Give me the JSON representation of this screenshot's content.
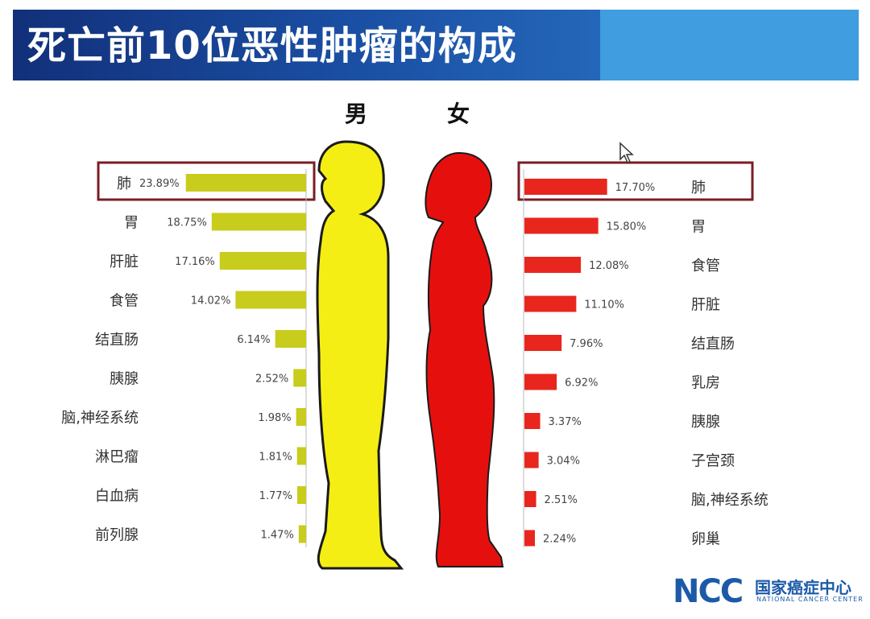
{
  "title": "死亡前10位恶性肿瘤的构成",
  "colors": {
    "male_bar": "#c8cc1c",
    "female_bar": "#e8261e",
    "male_body": "#f5ee14",
    "female_body": "#e5100e",
    "highlight_box": "#7a1d25",
    "title_bg": "#1a4fa3"
  },
  "logo": {
    "letters": "NCC",
    "name": "国家癌症中心",
    "english": "NATIONAL CANCER CENTER"
  },
  "chart_data": [
    {
      "type": "bar",
      "orientation": "horizontal",
      "direction": "leftward",
      "title": "男",
      "categories": [
        "肺",
        "胃",
        "肝脏",
        "食管",
        "结直肠",
        "胰腺",
        "脑,神经系统",
        "淋巴瘤",
        "白血病",
        "前列腺"
      ],
      "values": [
        23.89,
        18.75,
        17.16,
        14.02,
        6.14,
        2.52,
        1.98,
        1.81,
        1.77,
        1.47
      ],
      "labels": [
        "23.89%",
        "18.75%",
        "17.16%",
        "14.02%",
        "6.14%",
        "2.52%",
        "1.98%",
        "1.81%",
        "1.77%",
        "1.47%"
      ],
      "highlighted": "肺",
      "xlim": [
        0,
        24
      ]
    },
    {
      "type": "bar",
      "orientation": "horizontal",
      "direction": "rightward",
      "title": "女",
      "categories": [
        "肺",
        "胃",
        "食管",
        "肝脏",
        "结直肠",
        "乳房",
        "胰腺",
        "子宫颈",
        "脑,神经系统",
        "卵巢"
      ],
      "values": [
        17.7,
        15.8,
        12.08,
        11.1,
        7.96,
        6.92,
        3.37,
        3.04,
        2.51,
        2.24
      ],
      "labels": [
        "17.70%",
        "15.80%",
        "12.08%",
        "11.10%",
        "7.96%",
        "6.92%",
        "3.37%",
        "3.04%",
        "2.51%",
        "2.24%"
      ],
      "highlighted": "肺",
      "xlim": [
        0,
        24
      ]
    }
  ]
}
